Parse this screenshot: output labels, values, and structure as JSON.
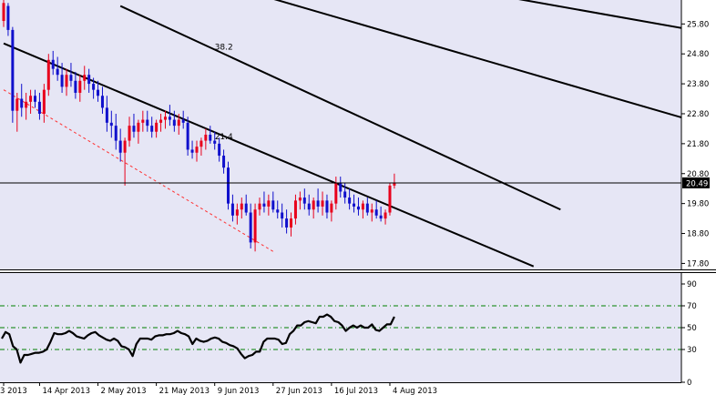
{
  "chart_data": [
    {
      "type": "candlestick",
      "y_ticks": [
        "25.80",
        "24.80",
        "23.80",
        "22.80",
        "21.80",
        "20.80",
        "19.80",
        "18.80",
        "17.80"
      ],
      "y_tick_values": [
        25.8,
        24.8,
        23.8,
        22.8,
        21.8,
        20.8,
        19.8,
        18.8,
        17.8
      ],
      "ylim": [
        17.6,
        26.6
      ],
      "x_ticks": [
        "3 2013",
        "14 Apr 2013",
        "2 May 2013",
        "21 May 2013",
        "9 Jun 2013",
        "27 Jun 2013",
        "16 Jul 2013",
        "4 Aug 2013"
      ],
      "x_tick_bars": [
        0,
        8,
        21,
        34,
        47,
        60,
        73,
        86
      ],
      "current_price": 20.49,
      "current_price_label": "20.49",
      "colors": {
        "up": "#e8001c",
        "down": "#1010cc",
        "background": "#e6e6f5",
        "resistance_dash": "#ff3030",
        "trend": "#000000"
      },
      "annotations": [
        {
          "text": "38.2",
          "bar": 47,
          "price": 24.95
        },
        {
          "text": "21.4",
          "bar": 47,
          "price": 21.95
        }
      ],
      "trendlines": [
        {
          "name": "main-trend",
          "from": {
            "bar": 0,
            "price": 25.15
          },
          "to": {
            "bar": 118,
            "price": 17.7
          }
        },
        {
          "name": "channel-1",
          "from": {
            "bar": 26,
            "price": 26.4
          },
          "to": {
            "bar": 124,
            "price": 19.6
          }
        },
        {
          "name": "channel-2",
          "from": {
            "bar": 54,
            "price": 26.9
          },
          "to": {
            "bar": 155,
            "price": 22.5
          }
        },
        {
          "name": "channel-3",
          "from": {
            "bar": 97,
            "price": 27.1
          },
          "to": {
            "bar": 159,
            "price": 25.45
          }
        },
        {
          "name": "lower-dashed",
          "from": {
            "bar": 0,
            "price": 23.6
          },
          "to": {
            "bar": 60,
            "price": 18.2
          }
        }
      ],
      "ohlc": [
        [
          25.9,
          26.6,
          25.7,
          26.5
        ],
        [
          26.4,
          26.5,
          25.4,
          25.6
        ],
        [
          25.6,
          25.7,
          22.5,
          22.9
        ],
        [
          22.9,
          23.5,
          22.2,
          23.3
        ],
        [
          23.3,
          23.8,
          22.7,
          23.0
        ],
        [
          23.0,
          23.5,
          22.6,
          23.2
        ],
        [
          23.2,
          23.6,
          22.8,
          23.4
        ],
        [
          23.4,
          23.6,
          23.0,
          23.2
        ],
        [
          23.2,
          23.5,
          22.6,
          22.8
        ],
        [
          22.8,
          23.8,
          22.5,
          23.6
        ],
        [
          23.6,
          24.8,
          23.4,
          24.6
        ],
        [
          24.6,
          24.9,
          24.1,
          24.3
        ],
        [
          24.3,
          24.7,
          23.9,
          24.1
        ],
        [
          24.1,
          24.5,
          23.5,
          23.7
        ],
        [
          23.7,
          24.3,
          23.4,
          24.1
        ],
        [
          24.1,
          24.5,
          23.7,
          23.9
        ],
        [
          23.9,
          24.2,
          23.3,
          23.5
        ],
        [
          23.5,
          24.1,
          23.2,
          23.9
        ],
        [
          23.9,
          24.4,
          23.6,
          24.1
        ],
        [
          24.1,
          24.3,
          23.5,
          23.8
        ],
        [
          23.8,
          24.0,
          23.3,
          23.6
        ],
        [
          23.6,
          23.9,
          23.2,
          23.4
        ],
        [
          23.4,
          23.7,
          22.8,
          23.0
        ],
        [
          23.0,
          23.4,
          22.2,
          22.5
        ],
        [
          22.5,
          22.9,
          22.0,
          22.4
        ],
        [
          22.4,
          22.8,
          21.6,
          21.9
        ],
        [
          21.9,
          22.3,
          21.2,
          21.5
        ],
        [
          21.5,
          22.0,
          20.4,
          21.9
        ],
        [
          21.9,
          22.7,
          21.7,
          22.4
        ],
        [
          22.4,
          22.8,
          22.0,
          22.2
        ],
        [
          22.2,
          22.6,
          21.8,
          22.5
        ],
        [
          22.5,
          22.9,
          22.2,
          22.6
        ],
        [
          22.6,
          22.9,
          22.2,
          22.4
        ],
        [
          22.4,
          22.7,
          22.0,
          22.2
        ],
        [
          22.2,
          22.6,
          22.0,
          22.5
        ],
        [
          22.5,
          22.8,
          22.2,
          22.6
        ],
        [
          22.6,
          22.9,
          22.3,
          22.7
        ],
        [
          22.7,
          23.1,
          22.4,
          22.6
        ],
        [
          22.6,
          22.9,
          22.2,
          22.4
        ],
        [
          22.4,
          22.8,
          22.1,
          22.6
        ],
        [
          22.6,
          22.9,
          22.3,
          22.5
        ],
        [
          22.5,
          22.7,
          21.4,
          21.6
        ],
        [
          21.6,
          21.9,
          21.3,
          21.5
        ],
        [
          21.5,
          21.9,
          21.2,
          21.7
        ],
        [
          21.7,
          22.0,
          21.4,
          21.9
        ],
        [
          21.9,
          22.3,
          21.6,
          22.1
        ],
        [
          22.1,
          22.4,
          21.8,
          21.9
        ],
        [
          21.9,
          22.2,
          21.6,
          21.8
        ],
        [
          21.8,
          22.0,
          21.2,
          21.4
        ],
        [
          21.4,
          21.6,
          20.8,
          21.0
        ],
        [
          21.0,
          21.2,
          19.6,
          19.8
        ],
        [
          19.8,
          20.1,
          19.2,
          19.4
        ],
        [
          19.4,
          19.8,
          19.1,
          19.6
        ],
        [
          19.6,
          20.0,
          19.3,
          19.8
        ],
        [
          19.8,
          20.1,
          19.4,
          19.5
        ],
        [
          19.5,
          19.8,
          18.3,
          18.5
        ],
        [
          18.5,
          19.8,
          18.2,
          19.6
        ],
        [
          19.6,
          20.0,
          19.4,
          19.8
        ],
        [
          19.8,
          20.2,
          19.5,
          19.7
        ],
        [
          19.7,
          20.1,
          19.4,
          19.9
        ],
        [
          19.9,
          20.2,
          19.5,
          19.6
        ],
        [
          19.6,
          19.9,
          19.3,
          19.5
        ],
        [
          19.5,
          19.8,
          19.0,
          19.3
        ],
        [
          19.3,
          19.6,
          18.8,
          19.0
        ],
        [
          19.0,
          19.5,
          18.7,
          19.3
        ],
        [
          19.3,
          20.1,
          19.1,
          19.9
        ],
        [
          19.9,
          20.2,
          19.6,
          20.0
        ],
        [
          20.0,
          20.3,
          19.6,
          19.8
        ],
        [
          19.8,
          20.1,
          19.4,
          19.6
        ],
        [
          19.6,
          20.0,
          19.3,
          19.9
        ],
        [
          19.9,
          20.3,
          19.5,
          19.7
        ],
        [
          19.7,
          20.2,
          19.4,
          19.9
        ],
        [
          19.9,
          20.1,
          19.3,
          19.5
        ],
        [
          19.5,
          19.9,
          19.2,
          19.8
        ],
        [
          19.8,
          20.7,
          19.6,
          20.5
        ],
        [
          20.5,
          20.7,
          20.0,
          20.2
        ],
        [
          20.2,
          20.5,
          19.8,
          20.0
        ],
        [
          20.0,
          20.3,
          19.6,
          19.8
        ],
        [
          19.8,
          20.1,
          19.5,
          19.7
        ],
        [
          19.7,
          20.0,
          19.4,
          19.6
        ],
        [
          19.6,
          19.9,
          19.3,
          19.8
        ],
        [
          19.8,
          20.0,
          19.4,
          19.5
        ],
        [
          19.5,
          19.8,
          19.2,
          19.6
        ],
        [
          19.6,
          19.9,
          19.3,
          19.4
        ],
        [
          19.4,
          19.7,
          19.2,
          19.3
        ],
        [
          19.3,
          19.6,
          19.1,
          19.5
        ],
        [
          19.5,
          20.5,
          19.4,
          20.4
        ],
        [
          20.4,
          20.8,
          20.3,
          20.49
        ]
      ]
    },
    {
      "type": "line",
      "y_ticks": [
        "90",
        "70",
        "50",
        "30",
        "0"
      ],
      "y_tick_values": [
        90,
        70,
        50,
        30,
        0
      ],
      "ylim": [
        0,
        100
      ],
      "levels": [
        70,
        50,
        30
      ],
      "level_color": "#008000",
      "series": [
        {
          "values": [
            40,
            46,
            44,
            33,
            30,
            18,
            25,
            25,
            26,
            27,
            27,
            28,
            30,
            37,
            45,
            44,
            44,
            45,
            47,
            45,
            42,
            41,
            40,
            43,
            45,
            46,
            43,
            41,
            39,
            38,
            40,
            38,
            33,
            32,
            30,
            24,
            35,
            40,
            40,
            40,
            39,
            42,
            43,
            43,
            44,
            44,
            45,
            47,
            45,
            44,
            42,
            35,
            40,
            38,
            37,
            38,
            40,
            41,
            40,
            37,
            36,
            34,
            33,
            31,
            26,
            22,
            24,
            25,
            28,
            28,
            37,
            40,
            40,
            40,
            39,
            35,
            36,
            44,
            47,
            52,
            52,
            55,
            56,
            55,
            54,
            60,
            60,
            62,
            60,
            56,
            55,
            52,
            47,
            50,
            52,
            50,
            52,
            50,
            50,
            53,
            48,
            47,
            50,
            53,
            53,
            60
          ]
        }
      ]
    }
  ]
}
